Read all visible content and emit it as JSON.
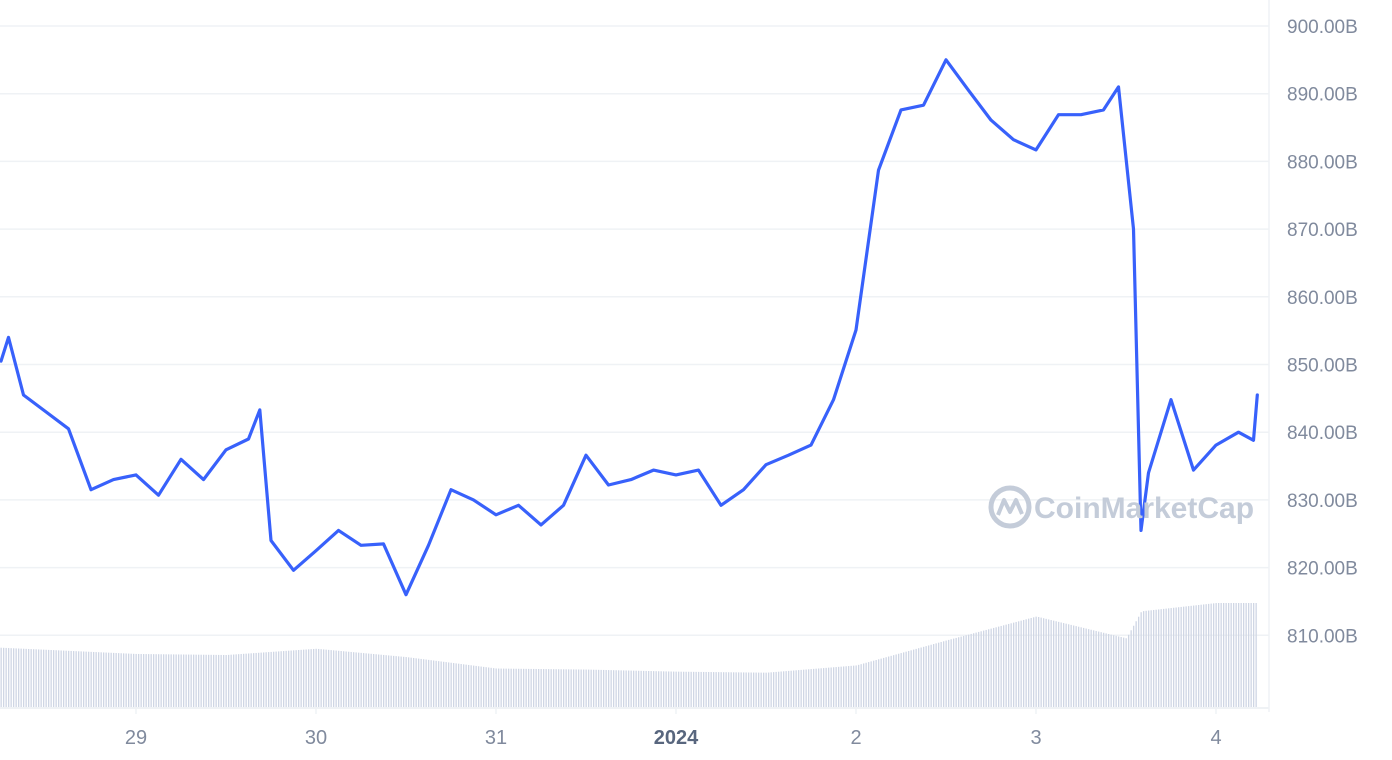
{
  "chart_data": {
    "type": "line",
    "title": "",
    "xlabel": "",
    "ylabel": "",
    "ylim": [
      800,
      905
    ],
    "grid": true,
    "y_ticks": [
      810,
      820,
      830,
      840,
      850,
      860,
      870,
      880,
      890,
      900
    ],
    "y_tick_labels": [
      "810.00B",
      "820.00B",
      "830.00B",
      "840.00B",
      "850.00B",
      "860.00B",
      "870.00B",
      "880.00B",
      "890.00B",
      "900.00B"
    ],
    "x_ticks": [
      "2023-12-29",
      "2023-12-30",
      "2023-12-31",
      "2024-01-01",
      "2024-01-02",
      "2024-01-03",
      "2024-01-04"
    ],
    "x_tick_labels": [
      "29",
      "30",
      "31",
      "2024",
      "2",
      "3",
      "4"
    ],
    "x_tick_bold": [
      false,
      false,
      false,
      true,
      false,
      false,
      false
    ],
    "xlim": [
      "2023-12-28T06:00",
      "2024-01-04T07:00"
    ],
    "y_axis_position": "right",
    "series": [
      {
        "color": "#3861fb",
        "x": [
          "2023-12-28T06:00",
          "2023-12-28T07:00",
          "2023-12-28T09:00",
          "2023-12-28T12:00",
          "2023-12-28T15:00",
          "2023-12-28T18:00",
          "2023-12-28T21:00",
          "2023-12-29T00:00",
          "2023-12-29T03:00",
          "2023-12-29T06:00",
          "2023-12-29T09:00",
          "2023-12-29T12:00",
          "2023-12-29T15:00",
          "2023-12-29T16:30",
          "2023-12-29T18:00",
          "2023-12-29T21:00",
          "2023-12-30T00:00",
          "2023-12-30T03:00",
          "2023-12-30T06:00",
          "2023-12-30T09:00",
          "2023-12-30T12:00",
          "2023-12-30T15:00",
          "2023-12-30T18:00",
          "2023-12-30T21:00",
          "2023-12-31T00:00",
          "2023-12-31T03:00",
          "2023-12-31T06:00",
          "2023-12-31T09:00",
          "2023-12-31T12:00",
          "2023-12-31T15:00",
          "2023-12-31T18:00",
          "2023-12-31T21:00",
          "2024-01-01T00:00",
          "2024-01-01T03:00",
          "2024-01-01T06:00",
          "2024-01-01T09:00",
          "2024-01-01T12:00",
          "2024-01-01T15:00",
          "2024-01-01T18:00",
          "2024-01-01T21:00",
          "2024-01-02T00:00",
          "2024-01-02T03:00",
          "2024-01-02T06:00",
          "2024-01-02T09:00",
          "2024-01-02T12:00",
          "2024-01-02T15:00",
          "2024-01-02T18:00",
          "2024-01-02T21:00",
          "2024-01-03T00:00",
          "2024-01-03T03:00",
          "2024-01-03T06:00",
          "2024-01-03T09:00",
          "2024-01-03T11:00",
          "2024-01-03T13:00",
          "2024-01-03T14:00",
          "2024-01-03T15:00",
          "2024-01-03T18:00",
          "2024-01-03T21:00",
          "2024-01-04T00:00",
          "2024-01-04T03:00",
          "2024-01-04T05:00",
          "2024-01-04T05:30"
        ],
        "values": [
          850.5,
          854.0,
          845.5,
          843.0,
          840.5,
          831.5,
          833.0,
          833.7,
          830.7,
          836.0,
          833.0,
          837.4,
          839.0,
          843.3,
          824.0,
          819.6,
          822.5,
          825.5,
          823.3,
          823.5,
          816.0,
          823.3,
          831.5,
          830.0,
          827.8,
          829.2,
          826.3,
          829.2,
          836.6,
          832.2,
          833.0,
          834.4,
          833.7,
          834.4,
          829.2,
          831.5,
          835.2,
          836.6,
          838.1,
          844.8,
          855.1,
          878.7,
          887.6,
          888.3,
          895.0,
          890.5,
          886.1,
          883.2,
          881.7,
          886.9,
          886.9,
          887.6,
          891.0,
          870.0,
          825.5,
          834.0,
          844.8,
          834.4,
          838.1,
          840.0,
          838.8,
          845.5
        ]
      }
    ],
    "volume": {
      "color": "#cfd6e4",
      "x": [
        "2023-12-28T06:00",
        "2023-12-29T00:00",
        "2023-12-29T12:00",
        "2023-12-30T00:00",
        "2023-12-30T12:00",
        "2023-12-31T00:00",
        "2023-12-31T12:00",
        "2024-01-01T00:00",
        "2024-01-01T12:00",
        "2024-01-02T00:00",
        "2024-01-02T12:00",
        "2024-01-03T00:00",
        "2024-01-03T12:00",
        "2024-01-03T14:00",
        "2024-01-04T00:00",
        "2024-01-04T05:30"
      ],
      "relative": [
        0.57,
        0.51,
        0.5,
        0.56,
        0.48,
        0.37,
        0.36,
        0.34,
        0.33,
        0.4,
        0.64,
        0.87,
        0.66,
        0.92,
        1.0,
        1.0
      ]
    },
    "watermark": "CoinMarketCap"
  }
}
